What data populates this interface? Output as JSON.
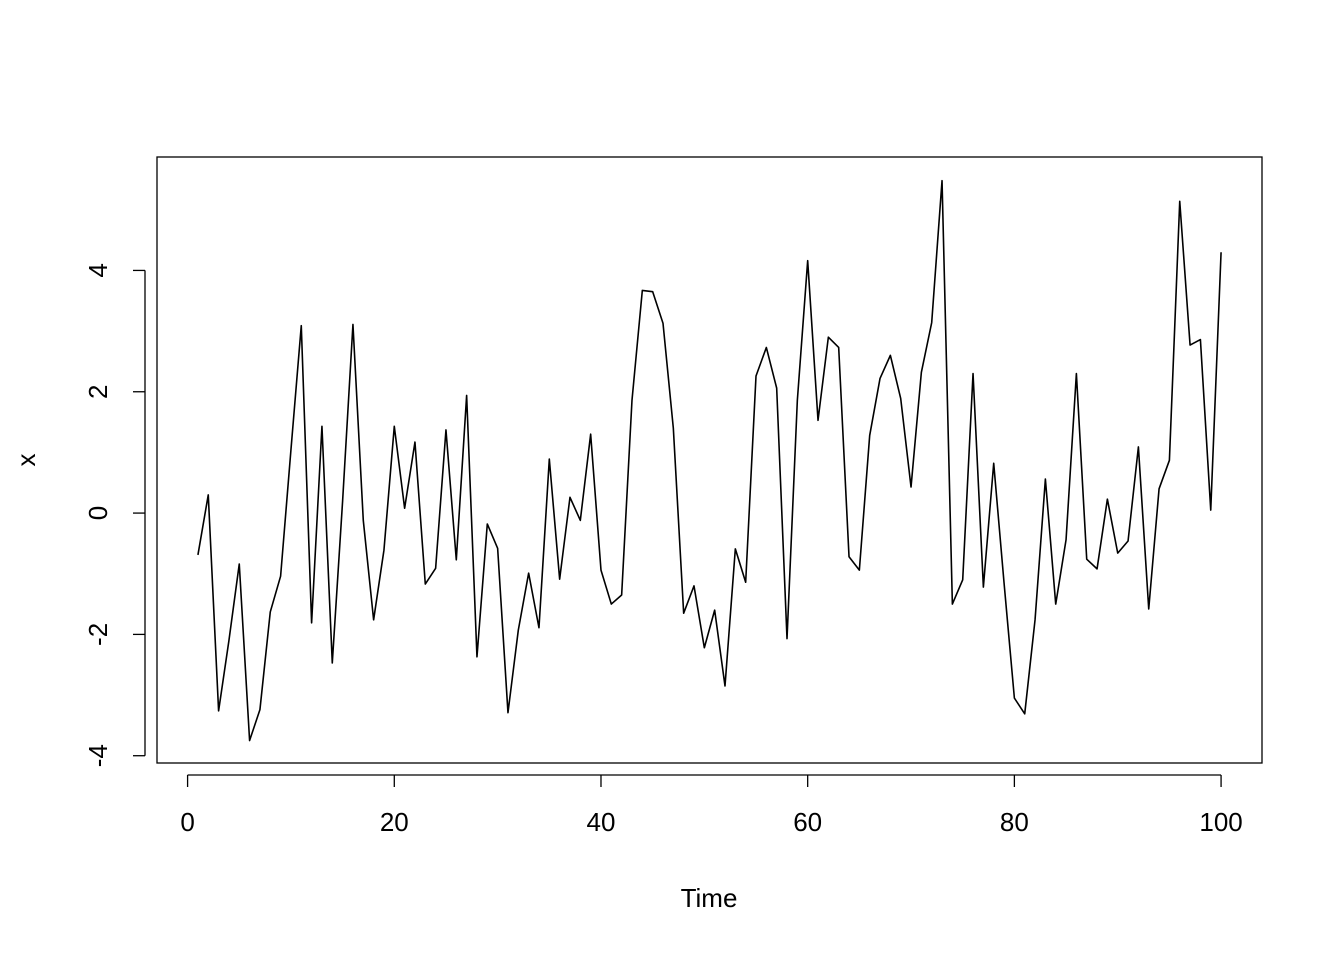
{
  "chart_data": {
    "type": "line",
    "x_label": "Time",
    "y_label": "x",
    "x": [
      1,
      2,
      3,
      4,
      5,
      6,
      7,
      8,
      9,
      10,
      11,
      12,
      13,
      14,
      15,
      16,
      17,
      18,
      19,
      20,
      21,
      22,
      23,
      24,
      25,
      26,
      27,
      28,
      29,
      30,
      31,
      32,
      33,
      34,
      35,
      36,
      37,
      38,
      39,
      40,
      41,
      42,
      43,
      44,
      45,
      46,
      47,
      48,
      49,
      50,
      51,
      52,
      53,
      54,
      55,
      56,
      57,
      58,
      59,
      60,
      61,
      62,
      63,
      64,
      65,
      66,
      67,
      68,
      69,
      70,
      71,
      72,
      73,
      74,
      75,
      76,
      77,
      78,
      79,
      80,
      81,
      82,
      83,
      84,
      85,
      86,
      87,
      88,
      89,
      90,
      91,
      92,
      93,
      94,
      95,
      96,
      97,
      98,
      99,
      100
    ],
    "values": [
      -0.69,
      0.3,
      -3.26,
      -2.1,
      -0.84,
      -3.75,
      -3.24,
      -1.63,
      -1.04,
      1.04,
      3.09,
      -1.81,
      1.43,
      -2.47,
      0.2,
      3.11,
      -0.12,
      -1.76,
      -0.61,
      1.43,
      0.08,
      1.17,
      -1.17,
      -0.91,
      1.37,
      -0.77,
      1.94,
      -2.37,
      -0.18,
      -0.58,
      -3.29,
      -1.93,
      -0.99,
      -1.89,
      0.89,
      -1.09,
      0.26,
      -0.12,
      1.3,
      -0.94,
      -1.5,
      -1.35,
      1.86,
      3.67,
      3.65,
      3.13,
      1.4,
      -1.65,
      -1.2,
      -2.22,
      -1.6,
      -2.85,
      -0.59,
      -1.14,
      2.26,
      2.73,
      2.06,
      -2.07,
      1.86,
      4.16,
      1.53,
      2.9,
      2.73,
      -0.72,
      -0.94,
      1.28,
      2.22,
      2.6,
      1.89,
      0.43,
      2.32,
      3.14,
      5.48,
      -1.5,
      -1.1,
      2.3,
      -1.22,
      0.82,
      -1.15,
      -3.05,
      -3.31,
      -1.76,
      0.56,
      -1.5,
      -0.44,
      2.3,
      -0.76,
      -0.92,
      0.23,
      -0.66,
      -0.46,
      1.09,
      -1.58,
      0.4,
      0.87,
      5.14,
      2.77,
      2.86,
      0.05,
      4.3
    ],
    "color": "#000000",
    "xlim": [
      -2.96,
      103.96
    ],
    "xticks": [
      0,
      20,
      40,
      60,
      80,
      100
    ],
    "ylim": [
      -4.12,
      5.87
    ],
    "yticks": [
      -4,
      -2,
      0,
      2,
      4
    ]
  }
}
